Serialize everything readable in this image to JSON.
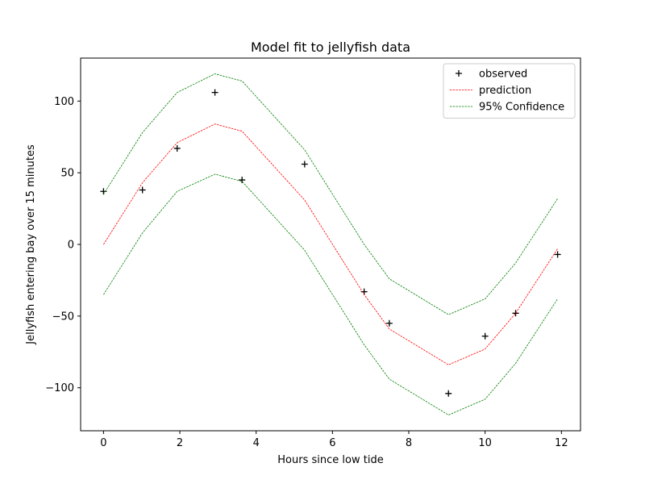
{
  "chart_data": {
    "type": "line",
    "title": "Model fit to jellyfish data",
    "xlabel": "Hours since low tide",
    "ylabel": "Jellyfish entering bay over 15 minutes",
    "xlim": [
      -0.6,
      12.5
    ],
    "ylim": [
      -130,
      130
    ],
    "xticks": [
      0,
      2,
      4,
      6,
      8,
      10,
      12
    ],
    "yticks": [
      -100,
      -50,
      0,
      50,
      100
    ],
    "grid": false,
    "legend_position": "top-right",
    "x": [
      0,
      1.02,
      1.93,
      2.92,
      3.63,
      5.27,
      6.83,
      7.49,
      9.04,
      10.0,
      10.8,
      11.9
    ],
    "series": [
      {
        "name": "observed",
        "style": "marker-plus",
        "color": "#000000",
        "values": [
          37,
          38,
          67,
          106,
          45,
          56,
          -33,
          -55,
          -104,
          -64,
          -48,
          -7
        ]
      },
      {
        "name": "prediction",
        "style": "dashed-line",
        "color": "#ff0000",
        "values": [
          0,
          43,
          71,
          84,
          79,
          31,
          -35,
          -59,
          -84,
          -73,
          -48,
          -3
        ]
      },
      {
        "name": "95% Confidence",
        "style": "dashed-line",
        "color": "#008000",
        "values": [
          35,
          78,
          106,
          119,
          114,
          66,
          0,
          -24,
          -49,
          -38,
          -13,
          32
        ]
      },
      {
        "name": "95% Confidence",
        "style": "dashed-line",
        "color": "#008000",
        "legend": false,
        "values": [
          -35,
          8,
          37,
          49,
          44,
          -4,
          -70,
          -94,
          -119,
          -108,
          -83,
          -38
        ]
      }
    ]
  }
}
